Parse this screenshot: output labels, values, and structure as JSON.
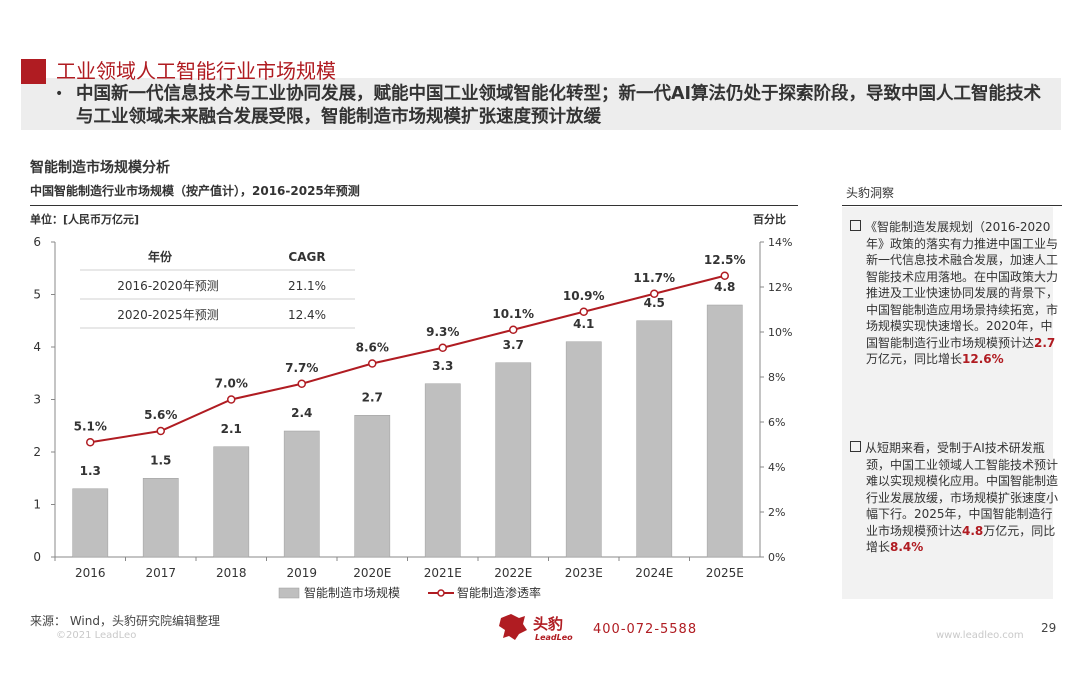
{
  "header": {
    "title": "工业领域人工智能行业市场规模",
    "bullet": "中国新一代信息技术与工业协同发展，赋能中国工业领域智能化转型；新一代AI算法仍处于探索阶段，导致中国人工智能技术与工业领域未来融合发展受限，智能制造市场规模扩张速度预计放缓"
  },
  "chart_section": {
    "heading": "智能制造市场规模分析",
    "subtitle": "中国智能制造行业市场规模（按产值计），2016-2025年预测",
    "unit_left": "单位：[人民币万亿元]",
    "unit_right": "百分比",
    "source": "来源：  Wind，头豹研究院编辑整理"
  },
  "chart_data": {
    "type": "bar",
    "categories": [
      "2016",
      "2017",
      "2018",
      "2019",
      "2020E",
      "2021E",
      "2022E",
      "2023E",
      "2024E",
      "2025E"
    ],
    "series": [
      {
        "name": "智能制造市场规模",
        "type": "bar",
        "axis": "left",
        "values": [
          1.3,
          1.5,
          2.1,
          2.4,
          2.7,
          3.3,
          3.7,
          4.1,
          4.5,
          4.8
        ],
        "labels": [
          "1.3",
          "1.5",
          "2.1",
          "2.4",
          "2.7",
          "3.3",
          "3.7",
          "4.1",
          "4.5",
          "4.8"
        ]
      },
      {
        "name": "智能制造渗透率",
        "type": "line",
        "axis": "right",
        "values": [
          5.1,
          5.6,
          7.0,
          7.7,
          8.6,
          9.3,
          10.1,
          10.9,
          11.7,
          12.5
        ],
        "labels": [
          "5.1%",
          "5.6%",
          "7.0%",
          "7.7%",
          "8.6%",
          "9.3%",
          "10.1%",
          "10.9%",
          "11.7%",
          "12.5%"
        ]
      }
    ],
    "y_left": {
      "range": [
        0,
        6
      ],
      "ticks": [
        "0",
        "1",
        "2",
        "3",
        "4",
        "5",
        "6"
      ]
    },
    "y_right": {
      "range": [
        0,
        14
      ],
      "ticks": [
        "0%",
        "2%",
        "4%",
        "6%",
        "8%",
        "10%",
        "12%",
        "14%"
      ]
    },
    "legend_position": "bottom",
    "cagr_table": {
      "headers": [
        "年份",
        "CAGR"
      ],
      "rows": [
        [
          "2016-2020年预测",
          "21.1%"
        ],
        [
          "2020-2025年预测",
          "12.4%"
        ]
      ]
    },
    "colors": {
      "bar": "#bfbfbf",
      "line": "#b01c22",
      "marker_fill": "#ffffff"
    }
  },
  "insight": {
    "title": "头豹洞察",
    "para1": {
      "text_before": "《智能制造发展规划（2016-2020年》政策的落实有力推进中国工业与新一代信息技术融合发展，加速人工智能技术应用落地。在中国政策大力推进及工业快速协同发展的背景下，中国智能制造应用场景持续拓宽，市场规模实现快速增长。2020年，中国智能制造行业市场规模预计达",
      "highlight1": "2.7",
      "text_mid": "万亿元，同比增长",
      "highlight2": "12.6%"
    },
    "para2": {
      "text_before": "从短期来看，受制于AI技术研发瓶颈，中国工业领域人工智能技术预计难以实现规模化应用。中国智能制造行业发展放缓，市场规模扩张速度小幅下行。2025年，中国智能制造行业市场规模预计达",
      "highlight1": "4.8",
      "text_mid": "万亿元，同比增长",
      "highlight2": "8.4%"
    }
  },
  "footer": {
    "copyright": "©2021 LeadLeo",
    "logo_text": "头豹",
    "logo_sub": "LeadLeo",
    "phone": "400-072-5588",
    "website": "www.leadleo.com",
    "page": "29"
  }
}
